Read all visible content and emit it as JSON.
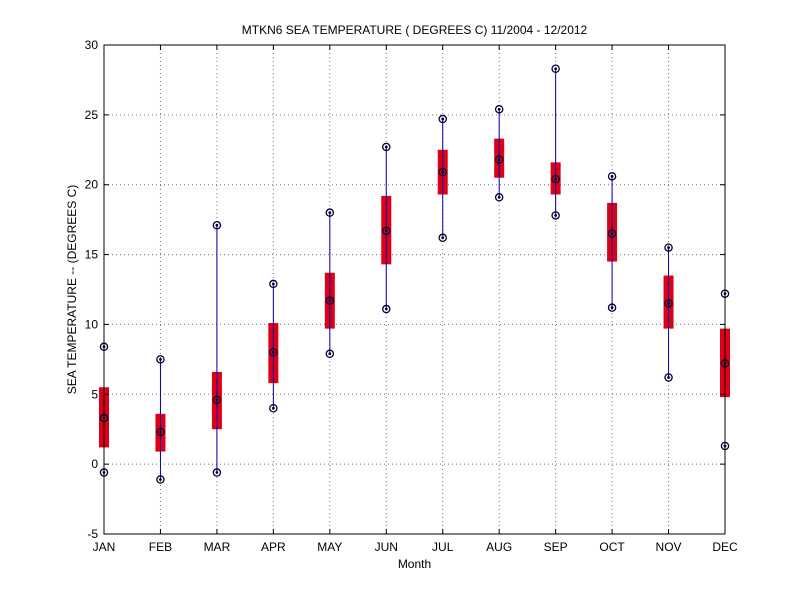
{
  "chart_data": {
    "type": "box",
    "title": "MTKN6  SEA TEMPERATURE ( DEGREES C) 11/2004 - 12/2012",
    "xlabel": "Month",
    "ylabel": "SEA TEMPERATURE -- (DEGREES C)",
    "ylim": [
      -5,
      30
    ],
    "yticks": [
      -5,
      0,
      5,
      10,
      15,
      20,
      25,
      30
    ],
    "grid": true,
    "categories": [
      "JAN",
      "FEB",
      "MAR",
      "APR",
      "MAY",
      "JUN",
      "JUL",
      "AUG",
      "SEP",
      "OCT",
      "NOV",
      "DEC"
    ],
    "series": [
      {
        "min": -0.6,
        "q1": 1.2,
        "median": 3.3,
        "q3": 5.5,
        "max": 8.4
      },
      {
        "min": -1.1,
        "q1": 0.9,
        "median": 2.3,
        "q3": 3.6,
        "max": 7.5
      },
      {
        "min": -0.6,
        "q1": 2.5,
        "median": 4.6,
        "q3": 6.6,
        "max": 17.1
      },
      {
        "min": 4.0,
        "q1": 5.8,
        "median": 8.0,
        "q3": 10.1,
        "max": 12.9
      },
      {
        "min": 7.9,
        "q1": 9.7,
        "median": 11.7,
        "q3": 13.7,
        "max": 18.0
      },
      {
        "min": 11.1,
        "q1": 14.3,
        "median": 16.7,
        "q3": 19.2,
        "max": 22.7
      },
      {
        "min": 16.2,
        "q1": 19.3,
        "median": 20.9,
        "q3": 22.5,
        "max": 24.7
      },
      {
        "min": 19.1,
        "q1": 20.5,
        "median": 21.8,
        "q3": 23.3,
        "max": 25.4
      },
      {
        "min": 17.8,
        "q1": 19.3,
        "median": 20.4,
        "q3": 21.6,
        "max": 28.3
      },
      {
        "min": 11.2,
        "q1": 14.5,
        "median": 16.5,
        "q3": 18.7,
        "max": 20.6
      },
      {
        "min": 6.2,
        "q1": 9.7,
        "median": 11.5,
        "q3": 13.5,
        "max": 15.5
      },
      {
        "min": 1.3,
        "q1": 4.8,
        "median": 7.2,
        "q3": 9.7,
        "max": 12.2
      }
    ],
    "colors": {
      "box": "#dd0018",
      "whisker": "#0000aa",
      "marker": "#000033"
    }
  }
}
